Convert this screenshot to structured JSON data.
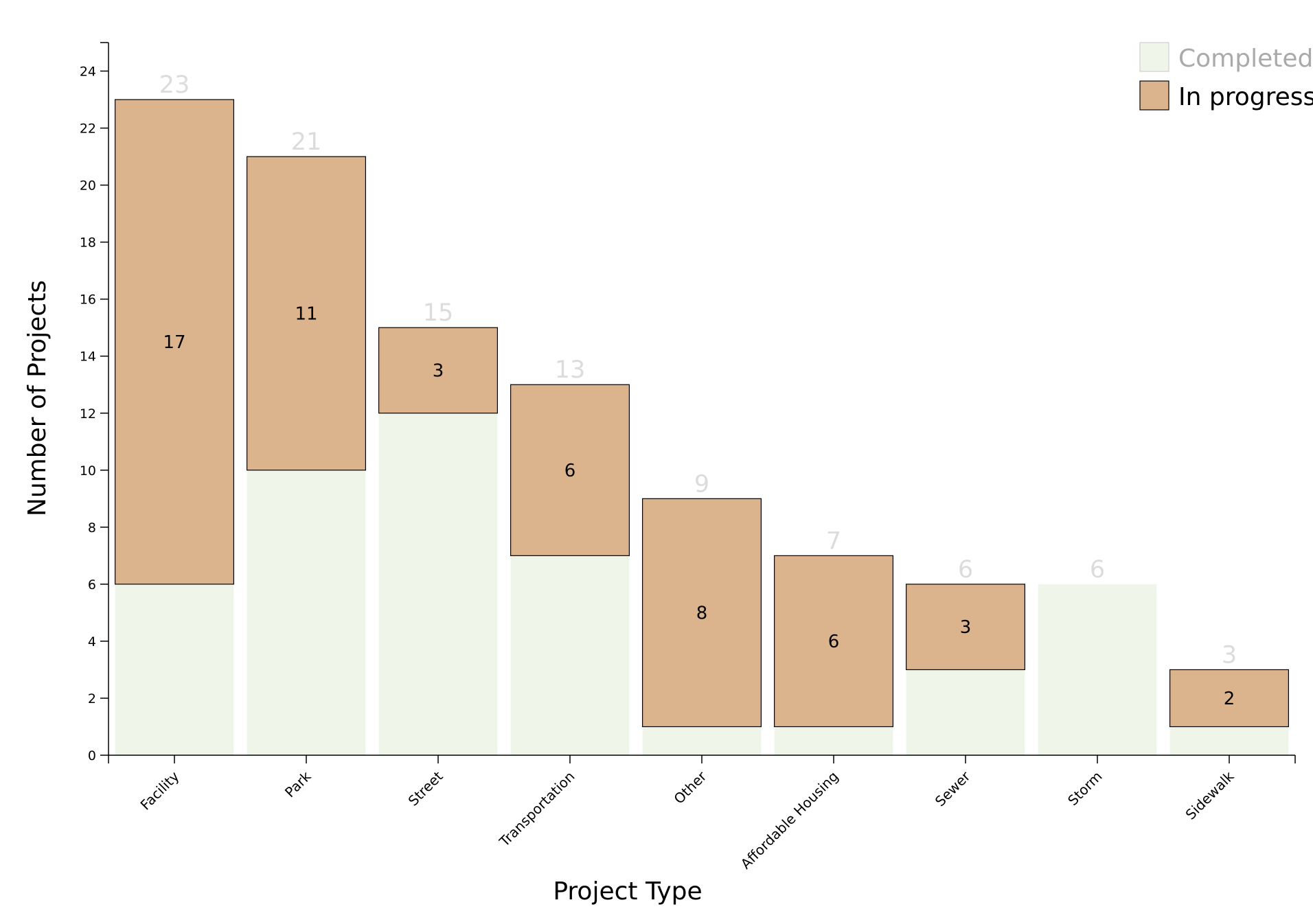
{
  "chart_data": {
    "type": "bar",
    "stacked": true,
    "categories": [
      "Facility",
      "Park",
      "Street",
      "Transportation",
      "Other",
      "Affordable Housing",
      "Sewer",
      "Storm",
      "Sidewalk"
    ],
    "series": [
      {
        "name": "Completed",
        "values": [
          6,
          10,
          12,
          7,
          1,
          1,
          3,
          6,
          1
        ],
        "color": "#eff5e8",
        "show_labels": false
      },
      {
        "name": "In progress",
        "values": [
          17,
          11,
          3,
          6,
          8,
          6,
          3,
          0,
          2
        ],
        "color": "#dbb38d",
        "show_labels": true
      }
    ],
    "totals": [
      23,
      21,
      15,
      13,
      9,
      7,
      6,
      6,
      3
    ],
    "xlabel": "Project Type",
    "ylabel": "Number of Projects",
    "ylim": [
      0,
      25
    ],
    "yticks": [
      0,
      2,
      4,
      6,
      8,
      10,
      12,
      14,
      16,
      18,
      20,
      22,
      24
    ],
    "grid": false,
    "legend_position": "top-right",
    "legend_colors": {
      "Completed": "#aaaaaa",
      "In progress": "#000000"
    }
  }
}
